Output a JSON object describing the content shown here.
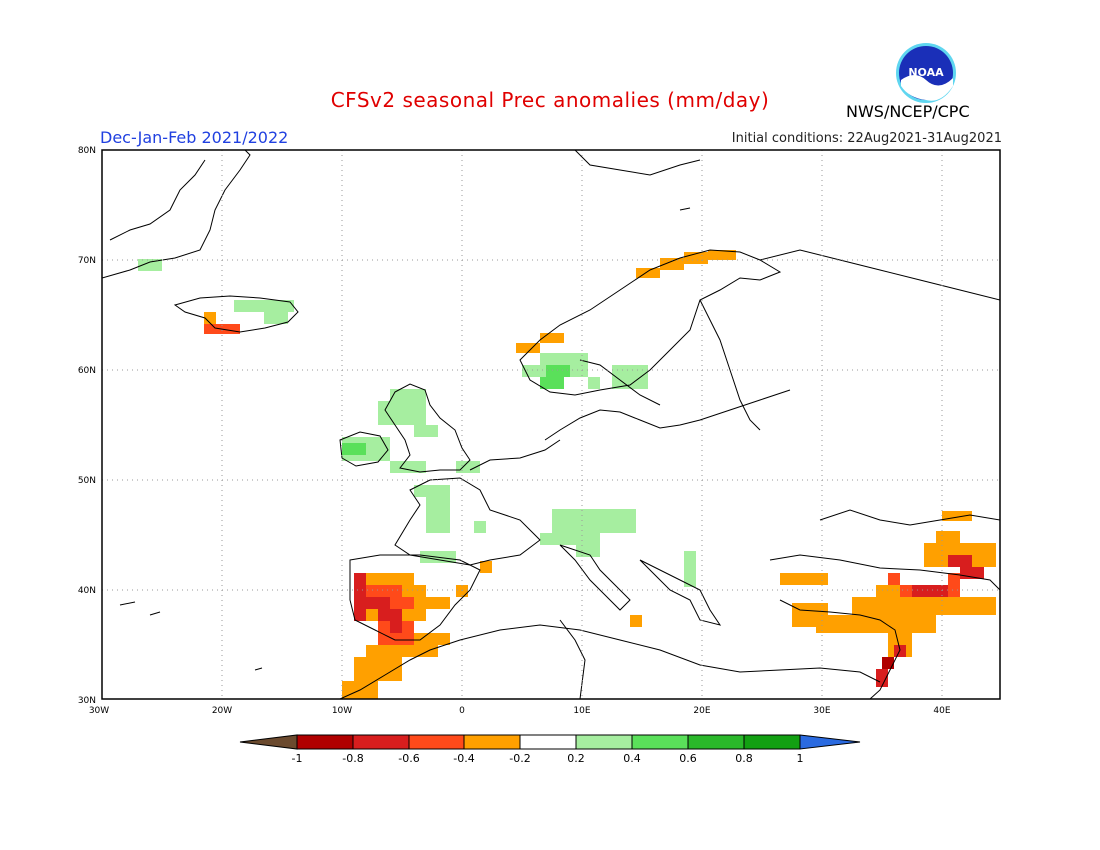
{
  "title": "CFSv2 seasonal Prec anomalies (mm/day)",
  "season": "Dec-Jan-Feb 2021/2022",
  "initial_conditions": "Initial conditions: 22Aug2021-31Aug2021",
  "agency": "NWS/NCEP/CPC",
  "logo_text": "NOAA",
  "map": {
    "lon_range": [
      -30,
      45
    ],
    "lat_range": [
      30,
      80
    ],
    "lon_ticks": [
      "30W",
      "20W",
      "10W",
      "0",
      "10E",
      "20E",
      "30E",
      "40E"
    ],
    "lat_ticks": [
      "30N",
      "40N",
      "50N",
      "60N",
      "70N",
      "80N"
    ]
  },
  "colorbar": {
    "ticks": [
      "-1",
      "-0.8",
      "-0.6",
      "-0.4",
      "-0.2",
      "0.2",
      "0.4",
      "0.6",
      "0.8",
      "1"
    ],
    "colors": {
      "below_min": "#6b4a2e",
      "neg_1_to_0_8": "#b00000",
      "neg_0_8_to_0_6": "#d81e1e",
      "neg_0_6_to_0_4": "#ff4a1a",
      "neg_0_4_to_0_2": "#ffa000",
      "neutral": "#ffffff",
      "pos_0_2_to_0_4": "#a6eea0",
      "pos_0_4_to_0_6": "#5ae05a",
      "pos_0_6_to_0_8": "#2ab82a",
      "pos_0_8_to_1": "#12a012",
      "above_max": "#2a6ae0"
    }
  }
}
